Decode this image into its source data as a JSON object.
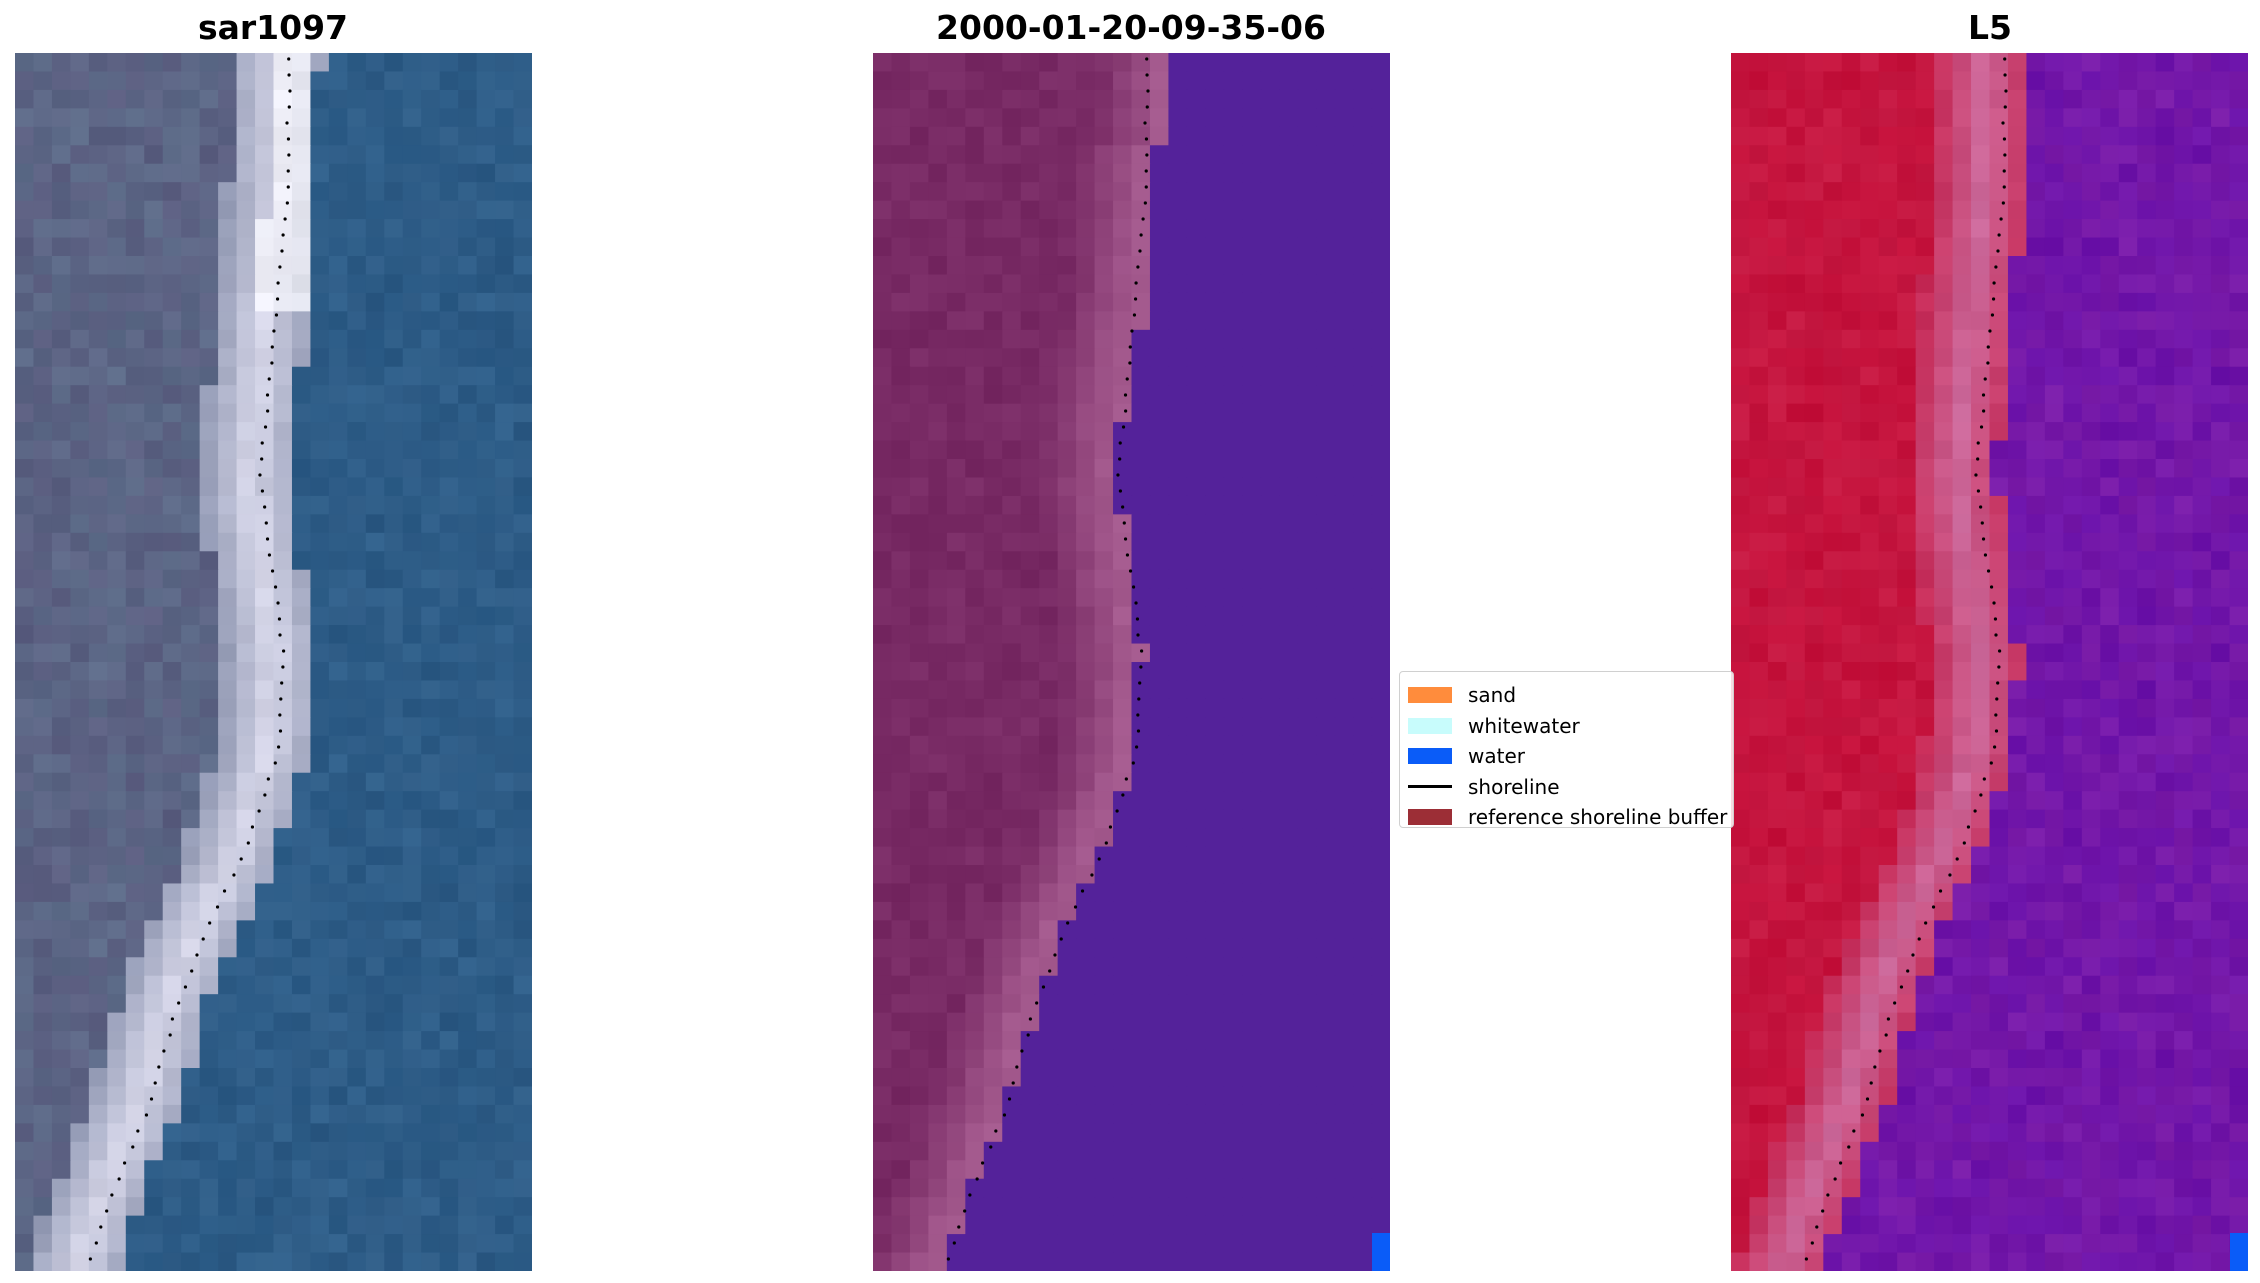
{
  "panels": [
    {
      "title": "sar1097",
      "view": "rgb"
    },
    {
      "title": "2000-01-20-09-35-06",
      "view": "classification"
    },
    {
      "title": "L5",
      "view": "index"
    }
  ],
  "legend": {
    "items": [
      {
        "label": "sand",
        "kind": "patch",
        "color": "#ff8c3c"
      },
      {
        "label": "whitewater",
        "kind": "patch",
        "color": "#c8fcfc"
      },
      {
        "label": "water",
        "kind": "patch",
        "color": "#0a5cf8"
      },
      {
        "label": "shoreline",
        "kind": "line",
        "color": "#000000"
      },
      {
        "label": "reference shoreline buffer",
        "kind": "patch",
        "color": "#9c2e36"
      }
    ]
  },
  "colors": {
    "rgb_water": "#2f5f8a",
    "rgb_land": "#5c6b88",
    "rgb_beach": "#d8d8ea",
    "class_land": "#782a64",
    "class_buffer": "#a45a8e",
    "class_water": "#54229a",
    "class_water_pixel": "#0a5cf8",
    "index_land": "#c4103a",
    "index_buffer": "#cc6a9c",
    "index_water": "#7a1ca8",
    "shoreline_dots": "#000000"
  }
}
